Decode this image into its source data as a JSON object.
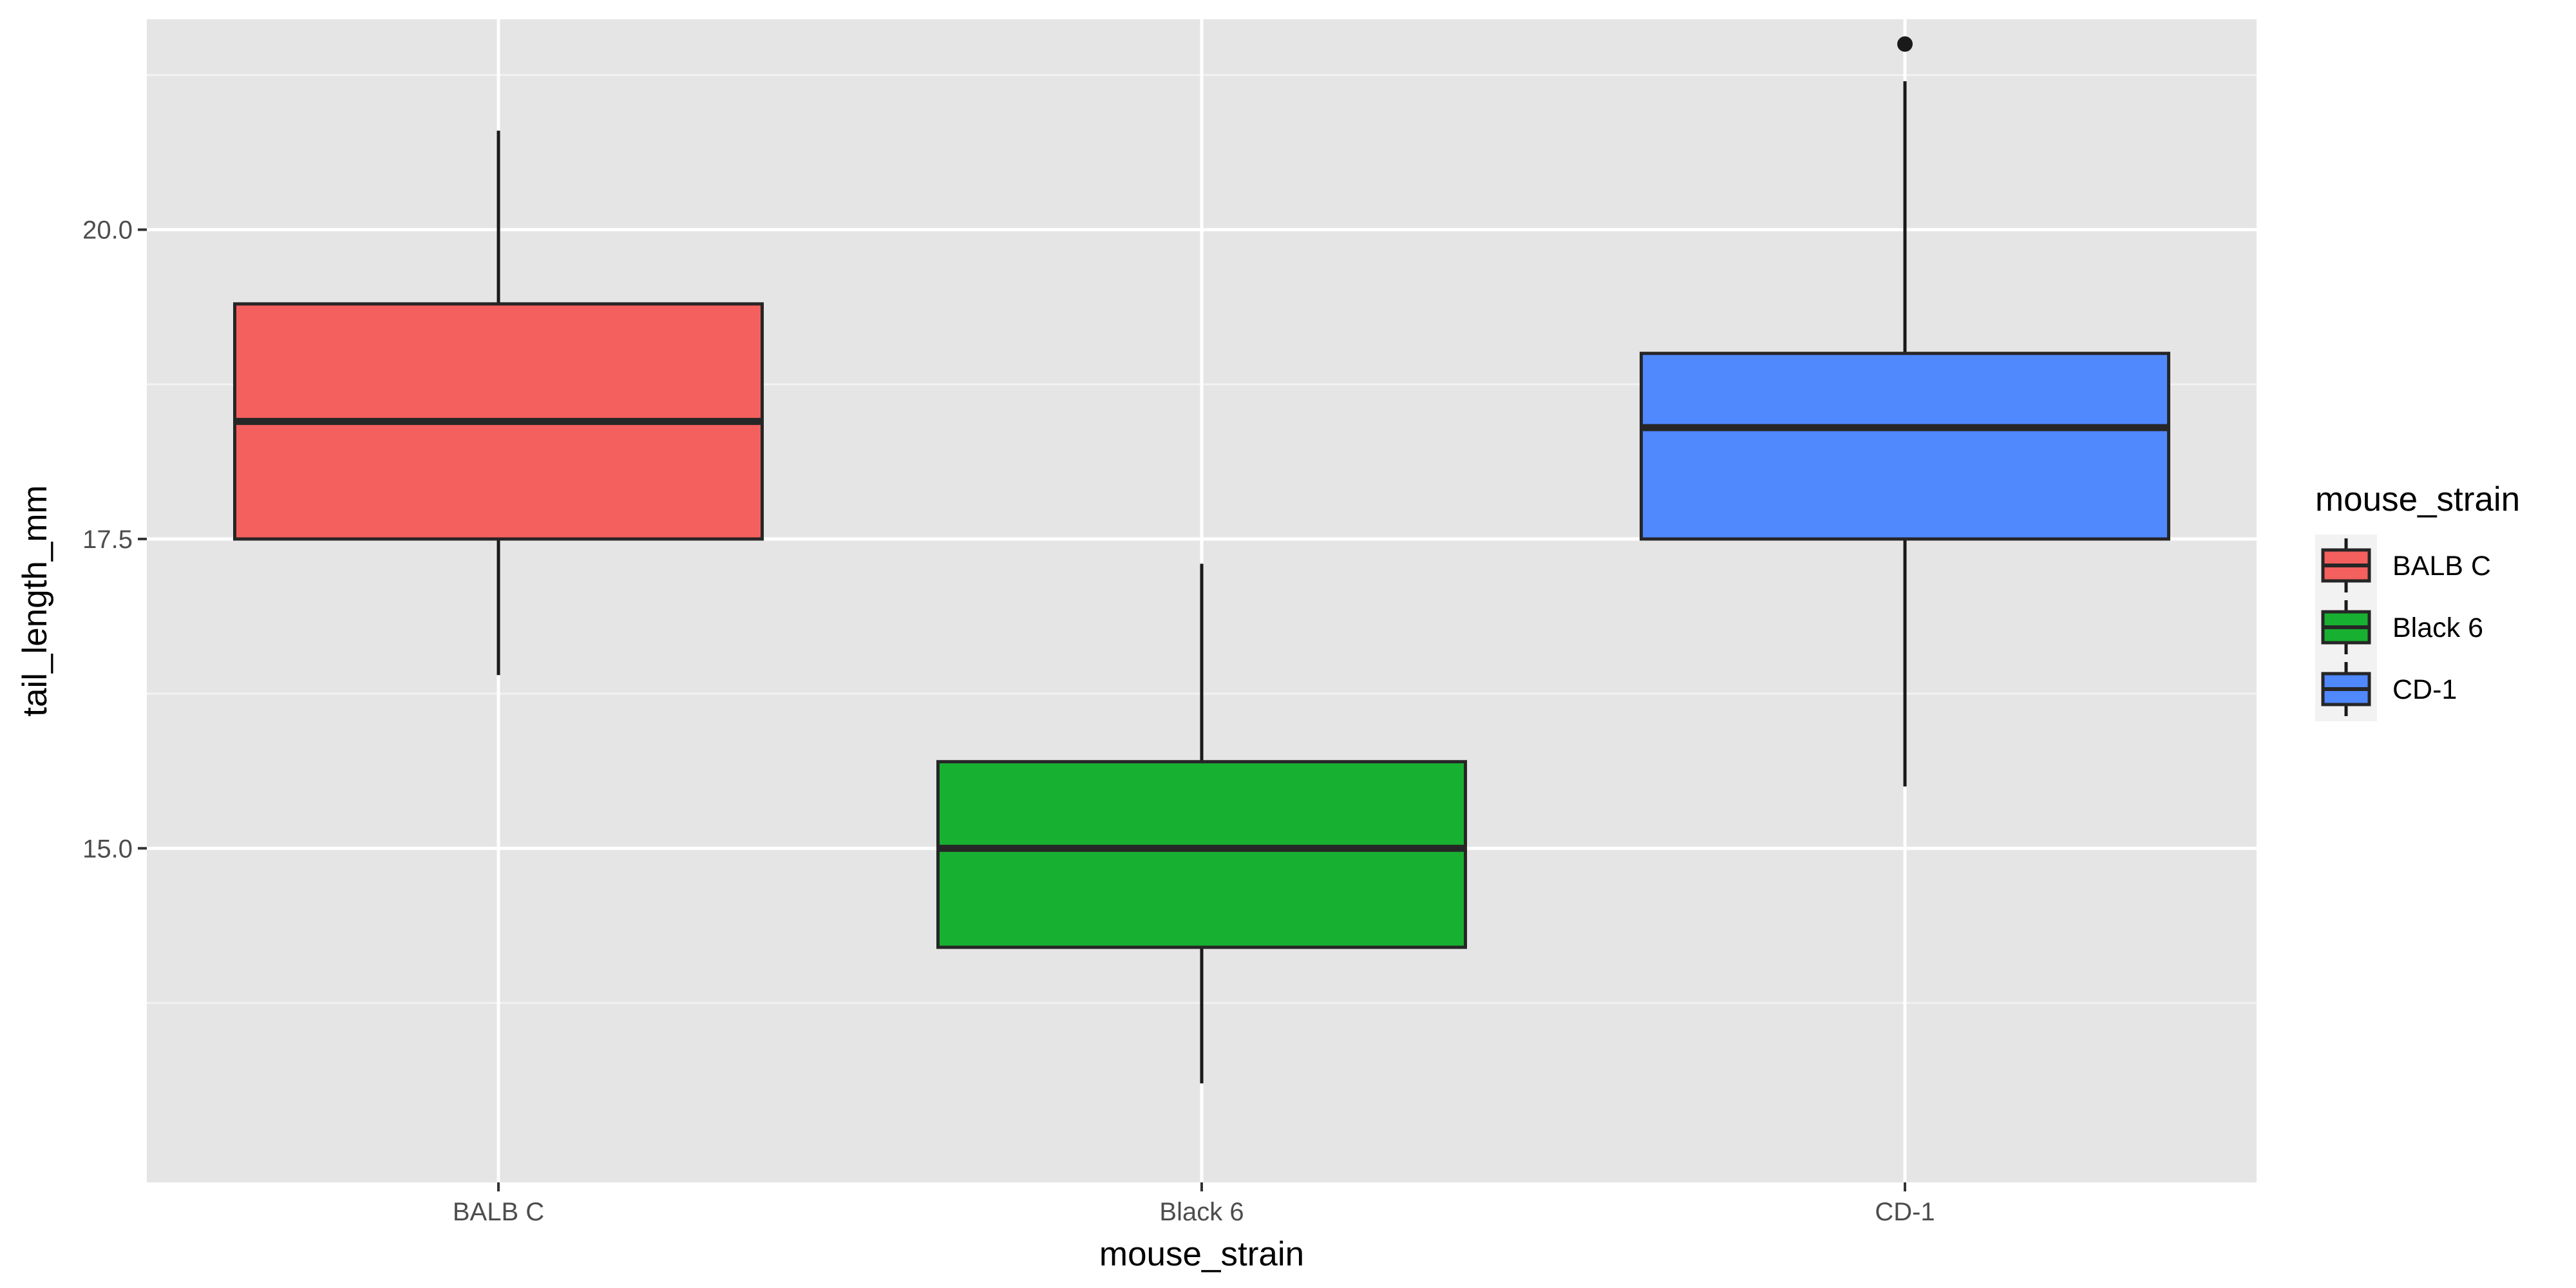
{
  "chart_data": {
    "type": "boxplot",
    "title": "",
    "xlabel": "mouse_strain",
    "ylabel": "tail_length_mm",
    "ylim": [
      12.3,
      21.7
    ],
    "y_ticks": [
      "15.0",
      "17.5",
      "20.0"
    ],
    "y_minor_ticks": [
      13.75,
      16.25,
      18.75,
      21.25
    ],
    "grid": true,
    "panel_background": "#e5e5e5",
    "categories": [
      "BALB C",
      "Black 6",
      "CD-1"
    ],
    "series": [
      {
        "category": "BALB C",
        "min": 16.4,
        "q1": 17.5,
        "median": 18.45,
        "q3": 19.4,
        "max": 20.8,
        "outliers": [],
        "color": "#f3605d"
      },
      {
        "category": "Black 6",
        "min": 13.1,
        "q1": 14.2,
        "median": 15.0,
        "q3": 15.7,
        "max": 17.3,
        "outliers": [],
        "color": "#18b031"
      },
      {
        "category": "CD-1",
        "min": 15.5,
        "q1": 17.5,
        "median": 18.4,
        "q3": 19.0,
        "max": 21.2,
        "outliers": [
          21.5
        ],
        "color": "#5088fe"
      }
    ],
    "legend": {
      "title": "mouse_strain",
      "position": "right",
      "entries": [
        "BALB C",
        "Black 6",
        "CD-1"
      ]
    }
  }
}
